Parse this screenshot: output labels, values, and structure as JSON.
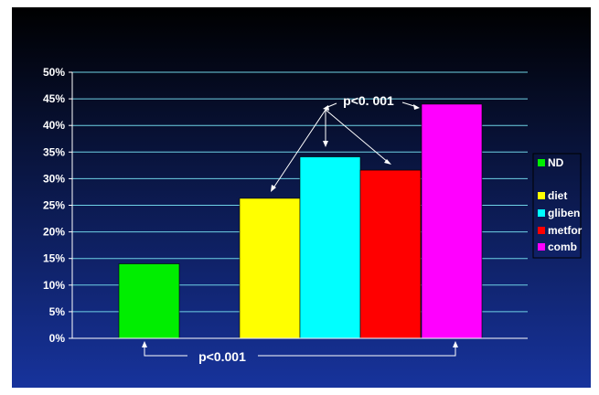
{
  "chart_data": {
    "type": "bar",
    "title": "",
    "xlabel": "",
    "ylabel": "",
    "ylim": [
      0,
      0.5
    ],
    "yticks": [
      "0%",
      "5%",
      "10%",
      "15%",
      "20%",
      "25%",
      "30%",
      "35%",
      "40%",
      "45%",
      "50%"
    ],
    "grid": true,
    "legend_position": "right",
    "series": [
      {
        "name": "ND",
        "value": 0.14,
        "color": "#00ee00"
      },
      {
        "name": "diet",
        "value": 0.263,
        "color": "#ffff00"
      },
      {
        "name": "gliben",
        "value": 0.341,
        "color": "#00ffff"
      },
      {
        "name": "metfor",
        "value": 0.316,
        "color": "#ff0000"
      },
      {
        "name": "comb",
        "value": 0.44,
        "color": "#ff00ff"
      }
    ],
    "annotations": [
      {
        "text": "p<0. 001",
        "compares": [
          "diet",
          "gliben",
          "metfor",
          "comb"
        ]
      },
      {
        "text": "p<0.001",
        "compares": [
          "ND",
          "comb"
        ]
      }
    ]
  },
  "colors": {
    "background_top": "#000000",
    "background_bottom": "#17339c",
    "gridline": "#6fd2e6",
    "axis": "#ffffff",
    "text": "#ffffff"
  }
}
